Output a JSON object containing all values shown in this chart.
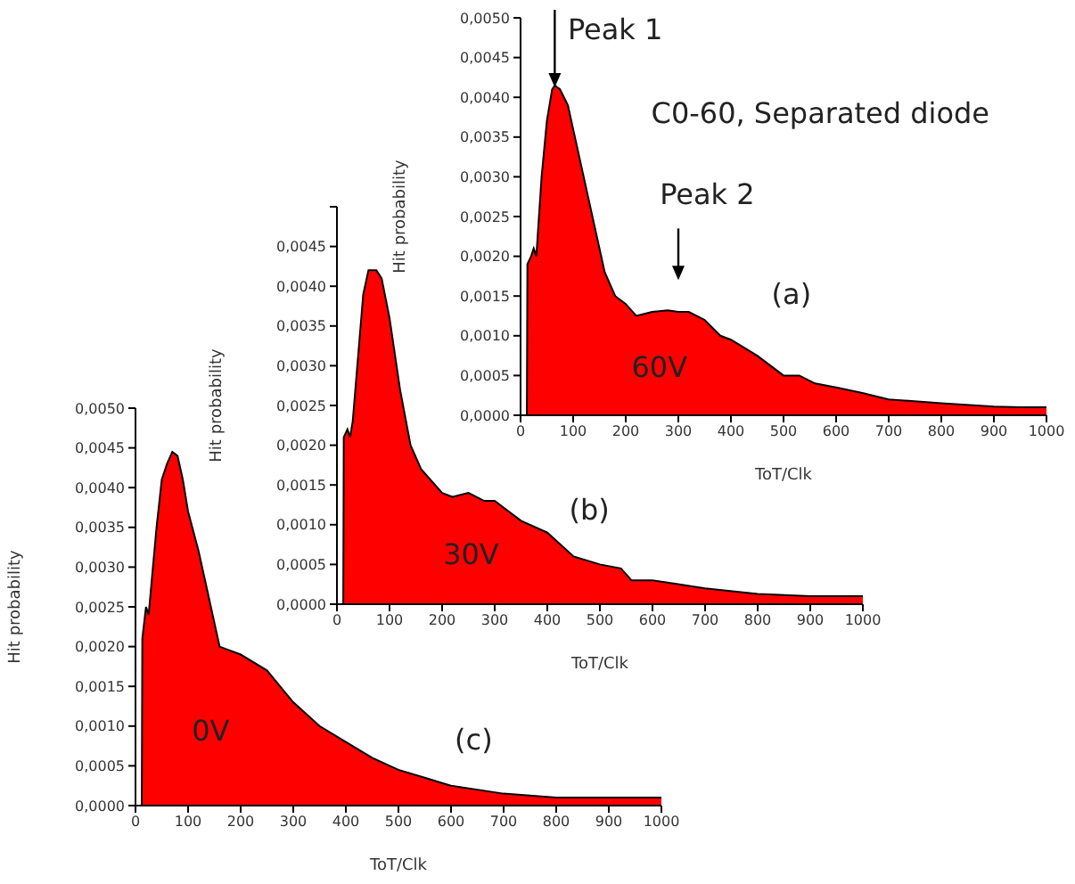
{
  "chart_data": [
    {
      "type": "area",
      "title": "C0-60, Separated diode",
      "xlabel": "ToT/Clk",
      "ylabel": "Hit probability",
      "annotations": [
        "Peak 1",
        "Peak 2",
        "(a)",
        "60V"
      ],
      "x": [
        12,
        13,
        20,
        25,
        30,
        40,
        50,
        60,
        65,
        75,
        90,
        100,
        120,
        140,
        160,
        180,
        200,
        220,
        250,
        280,
        300,
        320,
        350,
        380,
        400,
        450,
        500,
        530,
        560,
        600,
        650,
        700,
        800,
        900,
        950,
        1000
      ],
      "values": [
        0,
        0.0019,
        0.002,
        0.0021,
        0.002,
        0.003,
        0.0037,
        0.0041,
        0.00415,
        0.0041,
        0.0039,
        0.0036,
        0.003,
        0.0024,
        0.0018,
        0.0015,
        0.0014,
        0.00125,
        0.0013,
        0.00132,
        0.0013,
        0.0013,
        0.0012,
        0.001,
        0.00095,
        0.00075,
        0.0005,
        0.0005,
        0.0004,
        0.00035,
        0.00028,
        0.0002,
        0.00015,
        0.00011,
        0.0001,
        0.0001
      ],
      "color": "#ff0000",
      "xlim": [
        0,
        1000
      ],
      "ylim": [
        0,
        0.005
      ],
      "xticks": [
        0,
        100,
        200,
        300,
        400,
        500,
        600,
        700,
        800,
        900,
        1000
      ],
      "yticks": [
        {
          "value": 0,
          "label": "0,0000"
        },
        {
          "value": 0.0005,
          "label": "0,0005"
        },
        {
          "value": 0.001,
          "label": "0,0010"
        },
        {
          "value": 0.0015,
          "label": "0,0015"
        },
        {
          "value": 0.002,
          "label": "0,0020"
        },
        {
          "value": 0.0025,
          "label": "0,0025"
        },
        {
          "value": 0.003,
          "label": "0,0030"
        },
        {
          "value": 0.0035,
          "label": "0,0035"
        },
        {
          "value": 0.004,
          "label": "0,0040"
        },
        {
          "value": 0.0045,
          "label": "0,0045"
        },
        {
          "value": 0.005,
          "label": "0,0050"
        }
      ]
    },
    {
      "type": "area",
      "xlabel": "ToT/Clk",
      "ylabel": "Hit probability",
      "annotations": [
        "(b)",
        "30V"
      ],
      "x": [
        12,
        13,
        20,
        25,
        30,
        40,
        50,
        60,
        75,
        85,
        100,
        120,
        140,
        160,
        200,
        220,
        250,
        280,
        300,
        320,
        350,
        400,
        450,
        500,
        540,
        560,
        600,
        700,
        800,
        900,
        1000
      ],
      "values": [
        0,
        0.0021,
        0.0022,
        0.0021,
        0.0023,
        0.0031,
        0.0039,
        0.0042,
        0.0042,
        0.0041,
        0.0036,
        0.0027,
        0.002,
        0.0017,
        0.0014,
        0.00135,
        0.0014,
        0.0013,
        0.0013,
        0.0012,
        0.00105,
        0.0009,
        0.0006,
        0.0005,
        0.00045,
        0.0003,
        0.0003,
        0.0002,
        0.00013,
        0.0001,
        0.0001
      ],
      "color": "#ff0000",
      "xlim": [
        0,
        1000
      ],
      "ylim": [
        0,
        0.005
      ],
      "xticks": [
        0,
        100,
        200,
        300,
        400,
        500,
        600,
        700,
        800,
        900,
        1000
      ],
      "yticks": [
        {
          "value": 0,
          "label": "0,0000"
        },
        {
          "value": 0.0005,
          "label": "0,0005"
        },
        {
          "value": 0.001,
          "label": "0,0010"
        },
        {
          "value": 0.0015,
          "label": "0,0015"
        },
        {
          "value": 0.002,
          "label": "0,0020"
        },
        {
          "value": 0.0025,
          "label": "0,0025"
        },
        {
          "value": 0.003,
          "label": "0,0030"
        },
        {
          "value": 0.0035,
          "label": "0,0035"
        },
        {
          "value": 0.004,
          "label": "0,0040"
        },
        {
          "value": 0.0045,
          "label": "0,0045"
        },
        {
          "value": 0.005,
          "label": null
        }
      ]
    },
    {
      "type": "area",
      "xlabel": "ToT/Clk",
      "ylabel": "Hit probability",
      "annotations": [
        "0V",
        "(c)"
      ],
      "x": [
        12,
        13,
        20,
        25,
        40,
        50,
        60,
        70,
        80,
        90,
        100,
        120,
        140,
        160,
        200,
        250,
        300,
        350,
        400,
        450,
        500,
        550,
        600,
        700,
        800,
        900,
        1000
      ],
      "values": [
        0,
        0.0021,
        0.0025,
        0.0024,
        0.0035,
        0.0041,
        0.0043,
        0.00445,
        0.0044,
        0.0041,
        0.0037,
        0.0032,
        0.0026,
        0.002,
        0.0019,
        0.0017,
        0.0013,
        0.001,
        0.0008,
        0.0006,
        0.00045,
        0.00035,
        0.00025,
        0.00015,
        0.0001,
        0.0001,
        0.0001
      ],
      "color": "#ff0000",
      "xlim": [
        0,
        1000
      ],
      "ylim": [
        0,
        0.005
      ],
      "xticks": [
        0,
        100,
        200,
        300,
        400,
        500,
        600,
        700,
        800,
        900,
        1000
      ],
      "yticks": [
        {
          "value": 0,
          "label": "0,0000"
        },
        {
          "value": 0.0005,
          "label": "0,0005"
        },
        {
          "value": 0.001,
          "label": "0,0010"
        },
        {
          "value": 0.0015,
          "label": "0,0015"
        },
        {
          "value": 0.002,
          "label": "0,0020"
        },
        {
          "value": 0.0025,
          "label": "0,0025"
        },
        {
          "value": 0.003,
          "label": "0,0030"
        },
        {
          "value": 0.0035,
          "label": "0,0035"
        },
        {
          "value": 0.004,
          "label": "0,0040"
        },
        {
          "value": 0.0045,
          "label": "0,0045"
        },
        {
          "value": 0.005,
          "label": "0,0050"
        }
      ]
    }
  ]
}
